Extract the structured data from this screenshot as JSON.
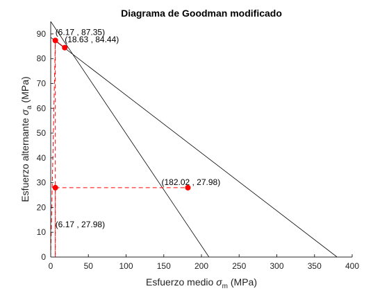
{
  "chart_data": {
    "type": "line",
    "title": "Diagrama de Goodman modificado",
    "xlabel": {
      "text": "Esfuerzo medio ",
      "symbol": "σ",
      "subscript": "m",
      "unit": " (MPa)"
    },
    "ylabel": {
      "text": "Esfuerzo alternante ",
      "symbol": "σ",
      "subscript": "a",
      "unit": " (MPa)"
    },
    "xlim": [
      0,
      400
    ],
    "ylim": [
      0,
      95
    ],
    "xticks": [
      0,
      50,
      100,
      150,
      200,
      250,
      300,
      350,
      400
    ],
    "yticks": [
      0,
      10,
      20,
      30,
      40,
      50,
      60,
      70,
      80,
      90
    ],
    "grid": false,
    "colors": {
      "lines": "#000000",
      "load": "#ff0000"
    },
    "series": [
      {
        "style": "solid-black",
        "x": [
          0,
          380
        ],
        "y": [
          88.6,
          0
        ]
      },
      {
        "style": "solid-black",
        "x": [
          0,
          210
        ],
        "y": [
          95,
          0
        ]
      },
      {
        "style": "solid-black",
        "x": [
          0,
          0
        ],
        "y": [
          0,
          95
        ]
      },
      {
        "style": "dashed-red",
        "x": [
          0,
          6.17,
          18.63,
          6.17,
          6.17
        ],
        "y": [
          0,
          87.35,
          84.44,
          87.35,
          0
        ]
      },
      {
        "style": "dashed-red",
        "x": [
          6.17,
          182.02
        ],
        "y": [
          27.98,
          27.98
        ]
      },
      {
        "style": "dashed-red",
        "x": [
          6.17,
          6.17
        ],
        "y": [
          0,
          27.98
        ]
      }
    ],
    "points": [
      {
        "x": 6.17,
        "y": 87.35,
        "label": "(6.17 , 87.35)",
        "anchor": "above"
      },
      {
        "x": 18.63,
        "y": 84.44,
        "label": "(18.63 , 84.44)",
        "anchor": "above-right"
      },
      {
        "x": 182.02,
        "y": 27.98,
        "label": "(182.02 , 27.98)",
        "anchor": "above-left"
      },
      {
        "x": 6.17,
        "y": 27.98,
        "label": "(6.17 , 27.98)",
        "anchor": "below"
      }
    ]
  }
}
